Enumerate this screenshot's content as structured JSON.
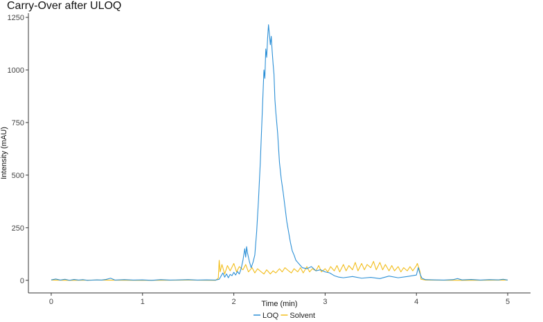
{
  "chart_data": {
    "type": "line",
    "title": "Carry-Over after ULOQ",
    "xlabel": "Time (min)",
    "ylabel": "Intensity (mAU)",
    "xlim": [
      -0.25,
      5.25
    ],
    "ylim": [
      -60,
      1270
    ],
    "x_ticks": [
      0,
      1,
      2,
      3,
      4,
      5
    ],
    "x_tick_labels": [
      "0",
      "1",
      "2",
      "3",
      "4",
      "5"
    ],
    "y_ticks": [
      0,
      250,
      500,
      750,
      1000,
      1250
    ],
    "y_tick_labels": [
      "0",
      "250",
      "500",
      "750",
      "1000",
      "1250"
    ],
    "grid": false,
    "legend_position": "bottom",
    "series": [
      {
        "name": "LOQ",
        "color": "#2b8fd6",
        "points": [
          [
            0,
            2
          ],
          [
            0.05,
            6
          ],
          [
            0.1,
            1
          ],
          [
            0.15,
            5
          ],
          [
            0.2,
            0
          ],
          [
            0.25,
            4
          ],
          [
            0.3,
            1
          ],
          [
            0.35,
            3
          ],
          [
            0.4,
            0
          ],
          [
            0.5,
            2
          ],
          [
            0.55,
            1
          ],
          [
            0.6,
            4
          ],
          [
            0.65,
            10
          ],
          [
            0.7,
            1
          ],
          [
            0.8,
            3
          ],
          [
            0.9,
            1
          ],
          [
            1.0,
            2
          ],
          [
            1.1,
            0
          ],
          [
            1.2,
            3
          ],
          [
            1.3,
            1
          ],
          [
            1.4,
            2
          ],
          [
            1.5,
            3
          ],
          [
            1.6,
            1
          ],
          [
            1.7,
            2
          ],
          [
            1.8,
            1
          ],
          [
            1.84,
            5
          ],
          [
            1.86,
            20
          ],
          [
            1.88,
            35
          ],
          [
            1.9,
            15
          ],
          [
            1.92,
            30
          ],
          [
            1.94,
            12
          ],
          [
            1.96,
            28
          ],
          [
            1.98,
            22
          ],
          [
            2.0,
            38
          ],
          [
            2.02,
            25
          ],
          [
            2.04,
            42
          ],
          [
            2.06,
            30
          ],
          [
            2.08,
            55
          ],
          [
            2.1,
            95
          ],
          [
            2.12,
            150
          ],
          [
            2.13,
            110
          ],
          [
            2.14,
            160
          ],
          [
            2.15,
            130
          ],
          [
            2.17,
            90
          ],
          [
            2.19,
            60
          ],
          [
            2.21,
            85
          ],
          [
            2.23,
            120
          ],
          [
            2.25,
            230
          ],
          [
            2.27,
            380
          ],
          [
            2.29,
            560
          ],
          [
            2.31,
            780
          ],
          [
            2.33,
            1000
          ],
          [
            2.34,
            960
          ],
          [
            2.35,
            1100
          ],
          [
            2.36,
            1060
          ],
          [
            2.37,
            1150
          ],
          [
            2.38,
            1215
          ],
          [
            2.39,
            1170
          ],
          [
            2.4,
            1120
          ],
          [
            2.41,
            1160
          ],
          [
            2.42,
            1090
          ],
          [
            2.43,
            1030
          ],
          [
            2.44,
            980
          ],
          [
            2.45,
            860
          ],
          [
            2.46,
            800
          ],
          [
            2.48,
            700
          ],
          [
            2.5,
            560
          ],
          [
            2.52,
            480
          ],
          [
            2.54,
            420
          ],
          [
            2.56,
            350
          ],
          [
            2.58,
            280
          ],
          [
            2.6,
            230
          ],
          [
            2.62,
            180
          ],
          [
            2.64,
            140
          ],
          [
            2.66,
            120
          ],
          [
            2.68,
            95
          ],
          [
            2.7,
            85
          ],
          [
            2.72,
            75
          ],
          [
            2.75,
            60
          ],
          [
            2.8,
            55
          ],
          [
            2.85,
            65
          ],
          [
            2.9,
            45
          ],
          [
            2.95,
            50
          ],
          [
            3.0,
            40
          ],
          [
            3.05,
            35
          ],
          [
            3.1,
            22
          ],
          [
            3.15,
            15
          ],
          [
            3.2,
            12
          ],
          [
            3.3,
            18
          ],
          [
            3.4,
            10
          ],
          [
            3.5,
            14
          ],
          [
            3.6,
            8
          ],
          [
            3.7,
            20
          ],
          [
            3.8,
            12
          ],
          [
            3.9,
            18
          ],
          [
            4.0,
            25
          ],
          [
            4.02,
            60
          ],
          [
            4.04,
            30
          ],
          [
            4.06,
            10
          ],
          [
            4.1,
            3
          ],
          [
            4.2,
            2
          ],
          [
            4.3,
            1
          ],
          [
            4.4,
            3
          ],
          [
            4.45,
            8
          ],
          [
            4.5,
            2
          ],
          [
            4.6,
            4
          ],
          [
            4.7,
            1
          ],
          [
            4.8,
            3
          ],
          [
            4.9,
            2
          ],
          [
            4.95,
            5
          ],
          [
            5.0,
            1
          ]
        ]
      },
      {
        "name": "Solvent",
        "color": "#f2bd1a",
        "points": [
          [
            0,
            1
          ],
          [
            0.2,
            0
          ],
          [
            0.5,
            1
          ],
          [
            1.0,
            0
          ],
          [
            1.5,
            1
          ],
          [
            1.8,
            0
          ],
          [
            1.83,
            10
          ],
          [
            1.84,
            95
          ],
          [
            1.85,
            40
          ],
          [
            1.87,
            75
          ],
          [
            1.9,
            30
          ],
          [
            1.93,
            70
          ],
          [
            1.96,
            45
          ],
          [
            2.0,
            80
          ],
          [
            2.03,
            40
          ],
          [
            2.06,
            65
          ],
          [
            2.1,
            50
          ],
          [
            2.13,
            75
          ],
          [
            2.16,
            40
          ],
          [
            2.2,
            60
          ],
          [
            2.23,
            35
          ],
          [
            2.26,
            55
          ],
          [
            2.3,
            40
          ],
          [
            2.33,
            30
          ],
          [
            2.36,
            50
          ],
          [
            2.4,
            30
          ],
          [
            2.43,
            45
          ],
          [
            2.46,
            35
          ],
          [
            2.5,
            55
          ],
          [
            2.53,
            40
          ],
          [
            2.56,
            60
          ],
          [
            2.6,
            45
          ],
          [
            2.63,
            35
          ],
          [
            2.66,
            55
          ],
          [
            2.7,
            40
          ],
          [
            2.73,
            60
          ],
          [
            2.76,
            35
          ],
          [
            2.8,
            65
          ],
          [
            2.83,
            40
          ],
          [
            2.86,
            55
          ],
          [
            2.9,
            45
          ],
          [
            2.93,
            70
          ],
          [
            2.96,
            40
          ],
          [
            3.0,
            55
          ],
          [
            3.03,
            40
          ],
          [
            3.06,
            65
          ],
          [
            3.1,
            45
          ],
          [
            3.13,
            70
          ],
          [
            3.16,
            40
          ],
          [
            3.2,
            75
          ],
          [
            3.23,
            45
          ],
          [
            3.26,
            70
          ],
          [
            3.3,
            50
          ],
          [
            3.33,
            85
          ],
          [
            3.36,
            45
          ],
          [
            3.4,
            80
          ],
          [
            3.43,
            50
          ],
          [
            3.46,
            75
          ],
          [
            3.5,
            60
          ],
          [
            3.53,
            90
          ],
          [
            3.56,
            50
          ],
          [
            3.6,
            85
          ],
          [
            3.63,
            50
          ],
          [
            3.66,
            75
          ],
          [
            3.7,
            45
          ],
          [
            3.73,
            70
          ],
          [
            3.76,
            45
          ],
          [
            3.8,
            65
          ],
          [
            3.83,
            40
          ],
          [
            3.86,
            60
          ],
          [
            3.9,
            45
          ],
          [
            3.93,
            65
          ],
          [
            3.96,
            45
          ],
          [
            4.0,
            70
          ],
          [
            4.01,
            80
          ],
          [
            4.03,
            55
          ],
          [
            4.04,
            40
          ],
          [
            4.05,
            5
          ],
          [
            4.1,
            1
          ],
          [
            4.5,
            0
          ],
          [
            5.0,
            1
          ]
        ]
      }
    ]
  }
}
